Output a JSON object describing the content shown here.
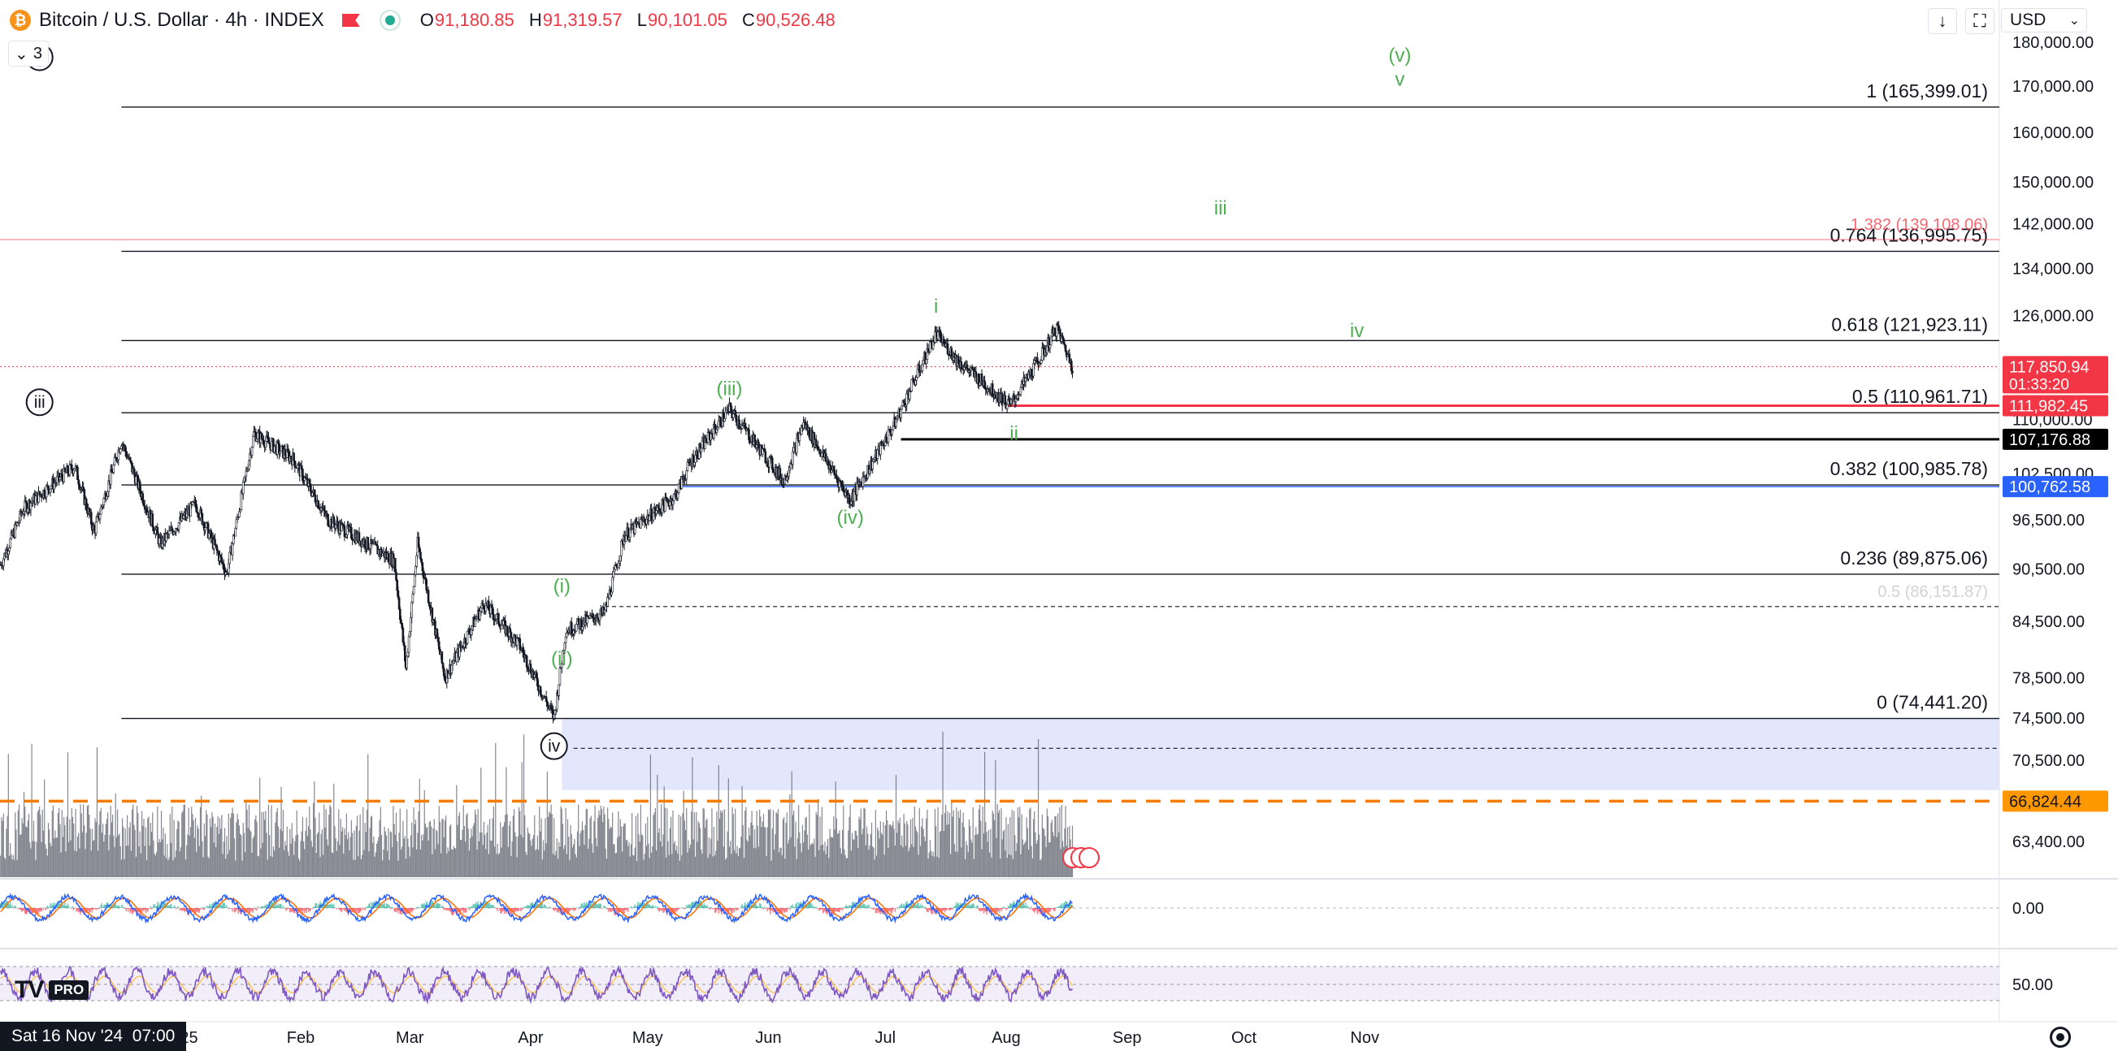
{
  "header": {
    "symbol": "Bitcoin / U.S. Dollar · 4h · INDEX",
    "ohlc": [
      {
        "key": "O",
        "value": "91,180.85"
      },
      {
        "key": "H",
        "value": "91,319.57"
      },
      {
        "key": "L",
        "value": "90,101.05"
      },
      {
        "key": "C",
        "value": "90,526.48"
      }
    ],
    "indicator_count": "3",
    "currency": "USD"
  },
  "colors": {
    "up": "#22ab94",
    "down": "#f23645",
    "wave": "#4caf50",
    "fib_line": "#131722",
    "fib_red": "#f23645",
    "zone": "#dde3fb",
    "orange": "#f57c00",
    "blue_label": "#2962ff",
    "macd": "#2962ff",
    "signal": "#ff6d00",
    "rsi": "#7e57c2",
    "rsi_band": "#ede7f6"
  },
  "chart_data": {
    "type": "line",
    "title": "Bitcoin / U.S. Dollar · 4h · INDEX",
    "y_scale": "log",
    "y_ticks": [
      63400,
      70500,
      74500,
      78500,
      84500,
      90500,
      96500,
      102500,
      110000,
      118000,
      126000,
      134000,
      142000,
      150000,
      160000,
      170000,
      180000
    ],
    "y_tick_labels": [
      "63,400.00",
      "70,500.00",
      "74,500.00",
      "78,500.00",
      "84,500.00",
      "90,500.00",
      "96,500.00",
      "102,500.00",
      "110,000.00",
      "118,000.00",
      "126,000.00",
      "134,000.00",
      "142,000.00",
      "150,000.00",
      "160,000.00",
      "170,000.00",
      "180,000.00"
    ],
    "x_tick_labels": [
      "2025",
      "Feb",
      "Mar",
      "Apr",
      "May",
      "Jun",
      "Jul",
      "Aug",
      "Sep",
      "Oct",
      "Nov"
    ],
    "x_ticks": [
      "2025-01-01",
      "2025-02-01",
      "2025-03-01",
      "2025-04-01",
      "2025-05-01",
      "2025-06-01",
      "2025-07-01",
      "2025-08-01",
      "2025-09-01",
      "2025-10-01",
      "2025-11-01"
    ],
    "price_path": [
      [
        "2024-11-16",
        91000
      ],
      [
        "2024-11-22",
        98000
      ],
      [
        "2024-12-05",
        103500
      ],
      [
        "2024-12-10",
        95000
      ],
      [
        "2024-12-17",
        107000
      ],
      [
        "2024-12-27",
        93500
      ],
      [
        "2025-01-05",
        98500
      ],
      [
        "2025-01-13",
        90000
      ],
      [
        "2025-01-20",
        108000
      ],
      [
        "2025-01-30",
        104500
      ],
      [
        "2025-02-08",
        96500
      ],
      [
        "2025-02-25",
        91500
      ],
      [
        "2025-02-28",
        79500
      ],
      [
        "2025-03-03",
        93500
      ],
      [
        "2025-03-10",
        78500
      ],
      [
        "2025-03-20",
        86500
      ],
      [
        "2025-03-29",
        82000
      ],
      [
        "2025-04-07",
        74500
      ],
      [
        "2025-04-10",
        83500
      ],
      [
        "2025-04-20",
        85500
      ],
      [
        "2025-04-25",
        94500
      ],
      [
        "2025-05-08",
        99500
      ],
      [
        "2025-05-12",
        104000
      ],
      [
        "2025-05-22",
        111500
      ],
      [
        "2025-06-05",
        101500
      ],
      [
        "2025-06-10",
        109500
      ],
      [
        "2025-06-22",
        99000
      ],
      [
        "2025-07-03",
        109000
      ],
      [
        "2025-07-14",
        123000
      ],
      [
        "2025-07-20",
        118500
      ],
      [
        "2025-08-02",
        112000
      ],
      [
        "2025-08-10",
        119500
      ],
      [
        "2025-08-14",
        124000
      ],
      [
        "2025-08-18",
        117850
      ]
    ],
    "fib_levels": [
      {
        "label": "1 (165,399.01)",
        "value": 165399.01
      },
      {
        "label": "0.764 (136,995.75)",
        "value": 136995.75
      },
      {
        "label": "0.618 (121,923.11)",
        "value": 121923.11
      },
      {
        "label": "0.5 (110,961.71)",
        "value": 110961.71
      },
      {
        "label": "0.382 (100,985.78)",
        "value": 100985.78
      },
      {
        "label": "0.236 (89,875.06)",
        "value": 89875.06
      },
      {
        "label": "0 (74,441.20)",
        "value": 74441.2
      }
    ],
    "red_fib": {
      "label": "1.382 (139,108.06)",
      "value": 139108.06
    },
    "faint_fib": {
      "label": "0.5 (86,151.87)",
      "value": 86151.87
    },
    "price_tags": [
      {
        "label": "117,850.94",
        "sub": "01:33:20",
        "value": 117850.94,
        "color": "#f23645"
      },
      {
        "label": "111,982.45",
        "value": 111982.45,
        "color": "#f23645"
      },
      {
        "label": "107,176.88",
        "value": 107176.88,
        "color": "#000000"
      },
      {
        "label": "100,762.58",
        "value": 100762.58,
        "color": "#2962ff"
      },
      {
        "label": "66,824.44",
        "value": 66824.44,
        "color": "#ff9800"
      }
    ],
    "support_zone": [
      67800,
      74441.2
    ],
    "wave_labels": [
      {
        "text": "v",
        "date": "2024-11-26",
        "value": 176500,
        "style": "circle"
      },
      {
        "text": "iii",
        "date": "2024-11-26",
        "value": 112500,
        "style": "circle"
      },
      {
        "text": "iv",
        "date": "2025-04-07",
        "value": 71800,
        "style": "circle"
      },
      {
        "text": "(i)",
        "date": "2025-04-09",
        "value": 88500,
        "style": "green"
      },
      {
        "text": "(ii)",
        "date": "2025-04-09",
        "value": 80500,
        "style": "green"
      },
      {
        "text": "(iii)",
        "date": "2025-05-22",
        "value": 114500,
        "style": "green"
      },
      {
        "text": "(iv)",
        "date": "2025-06-22",
        "value": 96800,
        "style": "green"
      },
      {
        "text": "i",
        "date": "2025-07-14",
        "value": 127500,
        "style": "green"
      },
      {
        "text": "ii",
        "date": "2025-08-03",
        "value": 108000,
        "style": "green"
      },
      {
        "text": "iii",
        "date": "2025-09-25",
        "value": 145000,
        "style": "green"
      },
      {
        "text": "iv",
        "date": "2025-10-30",
        "value": 123500,
        "style": "green"
      },
      {
        "text": "(v)",
        "date": "2025-11-10",
        "value": 177000,
        "style": "green"
      },
      {
        "text": "v",
        "date": "2025-11-10",
        "value": 171500,
        "style": "green"
      }
    ],
    "macd_zero_label": "0.00",
    "rsi_mid_label": "50.00"
  },
  "footer": {
    "cursor_date": "Sat 16 Nov '24",
    "cursor_time": "07:00",
    "logo_pro": "PRO"
  }
}
